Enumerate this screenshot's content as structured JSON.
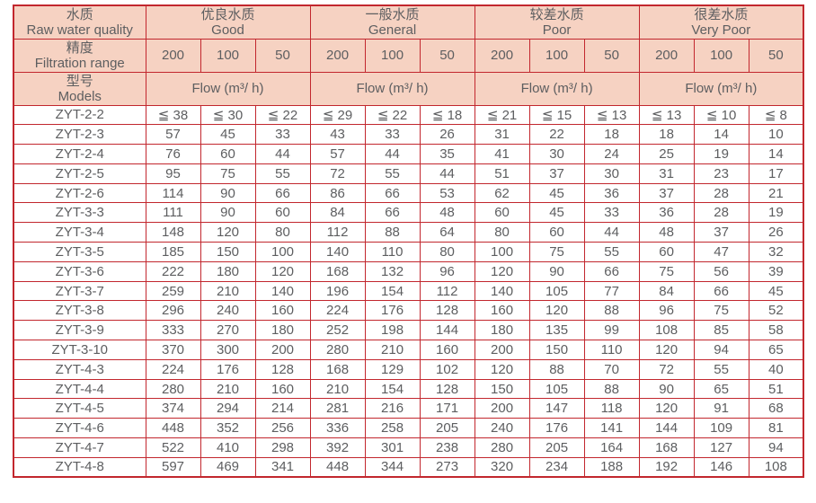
{
  "colors": {
    "border_red": "#c2272e",
    "header_bg": "#f6d2c2",
    "text_gray": "#5d5e60",
    "page_bg": "#ffffff"
  },
  "table": {
    "row_headers": [
      {
        "zh": "水质",
        "en": "Raw water quality"
      },
      {
        "zh": "精度",
        "en": "Filtration range"
      },
      {
        "zh": "型号",
        "en": "Models"
      }
    ],
    "groups": [
      {
        "zh": "优良水质",
        "en": "Good"
      },
      {
        "zh": "一般水质",
        "en": "General"
      },
      {
        "zh": "较差水质",
        "en": "Poor"
      },
      {
        "zh": "很差水质",
        "en": "Very Poor"
      }
    ],
    "filtration_values": [
      "200",
      "100",
      "50"
    ],
    "flow_label": "Flow (m³/ h)",
    "rows": [
      {
        "model": "ZYT-2-2",
        "values": [
          "≦ 38",
          "≦ 30",
          "≦ 22",
          "≦ 29",
          "≦ 22",
          "≦ 18",
          "≦ 21",
          "≦ 15",
          "≦ 13",
          "≦ 13",
          "≦ 10",
          "≦ 8"
        ]
      },
      {
        "model": "ZYT-2-3",
        "values": [
          "57",
          "45",
          "33",
          "43",
          "33",
          "26",
          "31",
          "22",
          "18",
          "18",
          "14",
          "10"
        ]
      },
      {
        "model": "ZYT-2-4",
        "values": [
          "76",
          "60",
          "44",
          "57",
          "44",
          "35",
          "41",
          "30",
          "24",
          "25",
          "19",
          "14"
        ]
      },
      {
        "model": "ZYT-2-5",
        "values": [
          "95",
          "75",
          "55",
          "72",
          "55",
          "44",
          "51",
          "37",
          "30",
          "31",
          "23",
          "17"
        ]
      },
      {
        "model": "ZYT-2-6",
        "values": [
          "114",
          "90",
          "66",
          "86",
          "66",
          "53",
          "62",
          "45",
          "36",
          "37",
          "28",
          "21"
        ]
      },
      {
        "model": "ZYT-3-3",
        "values": [
          "111",
          "90",
          "60",
          "84",
          "66",
          "48",
          "60",
          "45",
          "33",
          "36",
          "28",
          "19"
        ]
      },
      {
        "model": "ZYT-3-4",
        "values": [
          "148",
          "120",
          "80",
          "112",
          "88",
          "64",
          "80",
          "60",
          "44",
          "48",
          "37",
          "26"
        ]
      },
      {
        "model": "ZYT-3-5",
        "values": [
          "185",
          "150",
          "100",
          "140",
          "110",
          "80",
          "100",
          "75",
          "55",
          "60",
          "47",
          "32"
        ]
      },
      {
        "model": "ZYT-3-6",
        "values": [
          "222",
          "180",
          "120",
          "168",
          "132",
          "96",
          "120",
          "90",
          "66",
          "75",
          "56",
          "39"
        ]
      },
      {
        "model": "ZYT-3-7",
        "values": [
          "259",
          "210",
          "140",
          "196",
          "154",
          "112",
          "140",
          "105",
          "77",
          "84",
          "66",
          "45"
        ]
      },
      {
        "model": "ZYT-3-8",
        "values": [
          "296",
          "240",
          "160",
          "224",
          "176",
          "128",
          "160",
          "120",
          "88",
          "96",
          "75",
          "52"
        ]
      },
      {
        "model": "ZYT-3-9",
        "values": [
          "333",
          "270",
          "180",
          "252",
          "198",
          "144",
          "180",
          "135",
          "99",
          "108",
          "85",
          "58"
        ]
      },
      {
        "model": "ZYT-3-10",
        "values": [
          "370",
          "300",
          "200",
          "280",
          "210",
          "160",
          "200",
          "150",
          "110",
          "120",
          "94",
          "65"
        ]
      },
      {
        "model": "ZYT-4-3",
        "values": [
          "224",
          "176",
          "128",
          "168",
          "129",
          "102",
          "120",
          "88",
          "70",
          "72",
          "55",
          "40"
        ]
      },
      {
        "model": "ZYT-4-4",
        "values": [
          "280",
          "210",
          "160",
          "210",
          "154",
          "128",
          "150",
          "105",
          "88",
          "90",
          "65",
          "51"
        ]
      },
      {
        "model": "ZYT-4-5",
        "values": [
          "374",
          "294",
          "214",
          "281",
          "216",
          "171",
          "200",
          "147",
          "118",
          "120",
          "91",
          "68"
        ]
      },
      {
        "model": "ZYT-4-6",
        "values": [
          "448",
          "352",
          "256",
          "336",
          "258",
          "205",
          "240",
          "176",
          "141",
          "144",
          "109",
          "81"
        ]
      },
      {
        "model": "ZYT-4-7",
        "values": [
          "522",
          "410",
          "298",
          "392",
          "301",
          "238",
          "280",
          "205",
          "164",
          "168",
          "127",
          "94"
        ]
      },
      {
        "model": "ZYT-4-8",
        "values": [
          "597",
          "469",
          "341",
          "448",
          "344",
          "273",
          "320",
          "234",
          "188",
          "192",
          "146",
          "108"
        ]
      }
    ]
  }
}
